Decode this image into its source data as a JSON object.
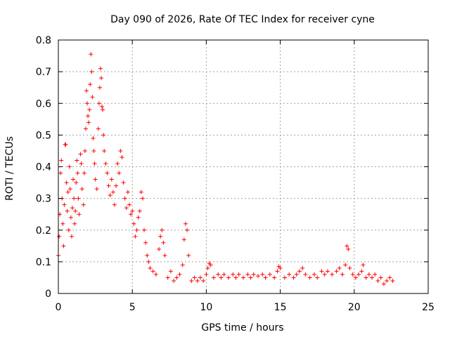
{
  "chart_data": {
    "type": "scatter",
    "title": "Day 090 of 2026, Rate Of TEC Index for receiver cyne",
    "xlabel": "GPS time / hours",
    "ylabel": "ROTI / TECUs",
    "xlim": [
      0,
      25
    ],
    "ylim": [
      0,
      0.8
    ],
    "xticks": [
      0,
      5,
      10,
      15,
      20,
      25
    ],
    "yticks": [
      0,
      0.1,
      0.2,
      0.3,
      0.4,
      0.5,
      0.6,
      0.7,
      0.8
    ],
    "xtick_labels": [
      "0",
      "5",
      "10",
      "15",
      "20",
      "25"
    ],
    "ytick_labels": [
      "0",
      "0.1",
      "0.2",
      "0.3",
      "0.4",
      "0.5",
      "0.6",
      "0.7",
      "0.8"
    ],
    "grid": true,
    "marker": "plus",
    "color": "#ff0000",
    "series": [
      {
        "name": "ROTI",
        "points": [
          [
            0.0,
            0.12
          ],
          [
            0.05,
            0.18
          ],
          [
            0.1,
            0.25
          ],
          [
            0.15,
            0.38
          ],
          [
            0.2,
            0.42
          ],
          [
            0.25,
            0.3
          ],
          [
            0.3,
            0.22
          ],
          [
            0.35,
            0.15
          ],
          [
            0.4,
            0.28
          ],
          [
            0.45,
            0.47
          ],
          [
            0.5,
            0.47
          ],
          [
            0.55,
            0.35
          ],
          [
            0.6,
            0.26
          ],
          [
            0.65,
            0.32
          ],
          [
            0.7,
            0.2
          ],
          [
            0.75,
            0.4
          ],
          [
            0.8,
            0.33
          ],
          [
            0.85,
            0.24
          ],
          [
            0.9,
            0.18
          ],
          [
            0.95,
            0.27
          ],
          [
            1.0,
            0.36
          ],
          [
            1.05,
            0.3
          ],
          [
            1.1,
            0.22
          ],
          [
            1.15,
            0.26
          ],
          [
            1.2,
            0.35
          ],
          [
            1.25,
            0.42
          ],
          [
            1.3,
            0.38
          ],
          [
            1.35,
            0.3
          ],
          [
            1.4,
            0.25
          ],
          [
            1.5,
            0.44
          ],
          [
            1.55,
            0.41
          ],
          [
            1.6,
            0.33
          ],
          [
            1.7,
            0.28
          ],
          [
            1.75,
            0.38
          ],
          [
            1.8,
            0.45
          ],
          [
            1.85,
            0.52
          ],
          [
            1.9,
            0.64
          ],
          [
            1.95,
            0.6
          ],
          [
            2.0,
            0.56
          ],
          [
            2.05,
            0.54
          ],
          [
            2.1,
            0.58
          ],
          [
            2.15,
            0.66
          ],
          [
            2.2,
            0.755
          ],
          [
            2.25,
            0.7
          ],
          [
            2.3,
            0.62
          ],
          [
            2.35,
            0.49
          ],
          [
            2.4,
            0.45
          ],
          [
            2.45,
            0.41
          ],
          [
            2.5,
            0.36
          ],
          [
            2.6,
            0.33
          ],
          [
            2.7,
            0.52
          ],
          [
            2.75,
            0.6
          ],
          [
            2.8,
            0.65
          ],
          [
            2.85,
            0.71
          ],
          [
            2.9,
            0.68
          ],
          [
            2.95,
            0.59
          ],
          [
            3.0,
            0.58
          ],
          [
            3.05,
            0.5
          ],
          [
            3.1,
            0.45
          ],
          [
            3.2,
            0.41
          ],
          [
            3.3,
            0.38
          ],
          [
            3.4,
            0.34
          ],
          [
            3.5,
            0.31
          ],
          [
            3.6,
            0.36
          ],
          [
            3.7,
            0.32
          ],
          [
            3.8,
            0.28
          ],
          [
            3.9,
            0.34
          ],
          [
            4.0,
            0.41
          ],
          [
            4.1,
            0.38
          ],
          [
            4.2,
            0.45
          ],
          [
            4.3,
            0.43
          ],
          [
            4.4,
            0.35
          ],
          [
            4.5,
            0.3
          ],
          [
            4.6,
            0.27
          ],
          [
            4.7,
            0.32
          ],
          [
            4.8,
            0.28
          ],
          [
            4.9,
            0.25
          ],
          [
            5.0,
            0.26
          ],
          [
            5.1,
            0.22
          ],
          [
            5.2,
            0.18
          ],
          [
            5.3,
            0.2
          ],
          [
            5.4,
            0.24
          ],
          [
            5.5,
            0.26
          ],
          [
            5.6,
            0.32
          ],
          [
            5.7,
            0.3
          ],
          [
            5.8,
            0.2
          ],
          [
            5.9,
            0.16
          ],
          [
            6.0,
            0.12
          ],
          [
            6.1,
            0.1
          ],
          [
            6.2,
            0.08
          ],
          [
            6.4,
            0.07
          ],
          [
            6.6,
            0.06
          ],
          [
            6.8,
            0.14
          ],
          [
            6.9,
            0.18
          ],
          [
            7.0,
            0.2
          ],
          [
            7.1,
            0.16
          ],
          [
            7.2,
            0.12
          ],
          [
            7.4,
            0.05
          ],
          [
            7.6,
            0.07
          ],
          [
            7.8,
            0.04
          ],
          [
            8.0,
            0.05
          ],
          [
            8.2,
            0.06
          ],
          [
            8.4,
            0.09
          ],
          [
            8.5,
            0.17
          ],
          [
            8.6,
            0.22
          ],
          [
            8.7,
            0.2
          ],
          [
            8.8,
            0.12
          ],
          [
            9.0,
            0.04
          ],
          [
            9.2,
            0.05
          ],
          [
            9.4,
            0.04
          ],
          [
            9.6,
            0.05
          ],
          [
            9.8,
            0.04
          ],
          [
            10.0,
            0.06
          ],
          [
            10.1,
            0.08
          ],
          [
            10.2,
            0.095
          ],
          [
            10.3,
            0.09
          ],
          [
            10.5,
            0.05
          ],
          [
            10.8,
            0.06
          ],
          [
            11.0,
            0.05
          ],
          [
            11.2,
            0.06
          ],
          [
            11.5,
            0.05
          ],
          [
            11.8,
            0.06
          ],
          [
            12.0,
            0.05
          ],
          [
            12.2,
            0.06
          ],
          [
            12.5,
            0.05
          ],
          [
            12.8,
            0.06
          ],
          [
            13.0,
            0.05
          ],
          [
            13.2,
            0.06
          ],
          [
            13.5,
            0.055
          ],
          [
            13.8,
            0.06
          ],
          [
            14.0,
            0.05
          ],
          [
            14.3,
            0.06
          ],
          [
            14.6,
            0.05
          ],
          [
            14.8,
            0.07
          ],
          [
            14.9,
            0.085
          ],
          [
            15.0,
            0.08
          ],
          [
            15.3,
            0.05
          ],
          [
            15.6,
            0.06
          ],
          [
            15.9,
            0.05
          ],
          [
            16.1,
            0.06
          ],
          [
            16.3,
            0.07
          ],
          [
            16.5,
            0.08
          ],
          [
            16.7,
            0.06
          ],
          [
            17.0,
            0.05
          ],
          [
            17.3,
            0.06
          ],
          [
            17.5,
            0.05
          ],
          [
            17.8,
            0.07
          ],
          [
            18.0,
            0.06
          ],
          [
            18.2,
            0.07
          ],
          [
            18.5,
            0.06
          ],
          [
            18.8,
            0.07
          ],
          [
            19.0,
            0.08
          ],
          [
            19.2,
            0.06
          ],
          [
            19.4,
            0.09
          ],
          [
            19.5,
            0.15
          ],
          [
            19.6,
            0.14
          ],
          [
            19.7,
            0.08
          ],
          [
            19.9,
            0.06
          ],
          [
            20.1,
            0.05
          ],
          [
            20.3,
            0.06
          ],
          [
            20.5,
            0.07
          ],
          [
            20.6,
            0.09
          ],
          [
            20.8,
            0.05
          ],
          [
            21.0,
            0.06
          ],
          [
            21.2,
            0.05
          ],
          [
            21.4,
            0.06
          ],
          [
            21.6,
            0.04
          ],
          [
            21.8,
            0.05
          ],
          [
            22.0,
            0.03
          ],
          [
            22.2,
            0.04
          ],
          [
            22.4,
            0.05
          ],
          [
            22.6,
            0.04
          ]
        ]
      }
    ]
  }
}
